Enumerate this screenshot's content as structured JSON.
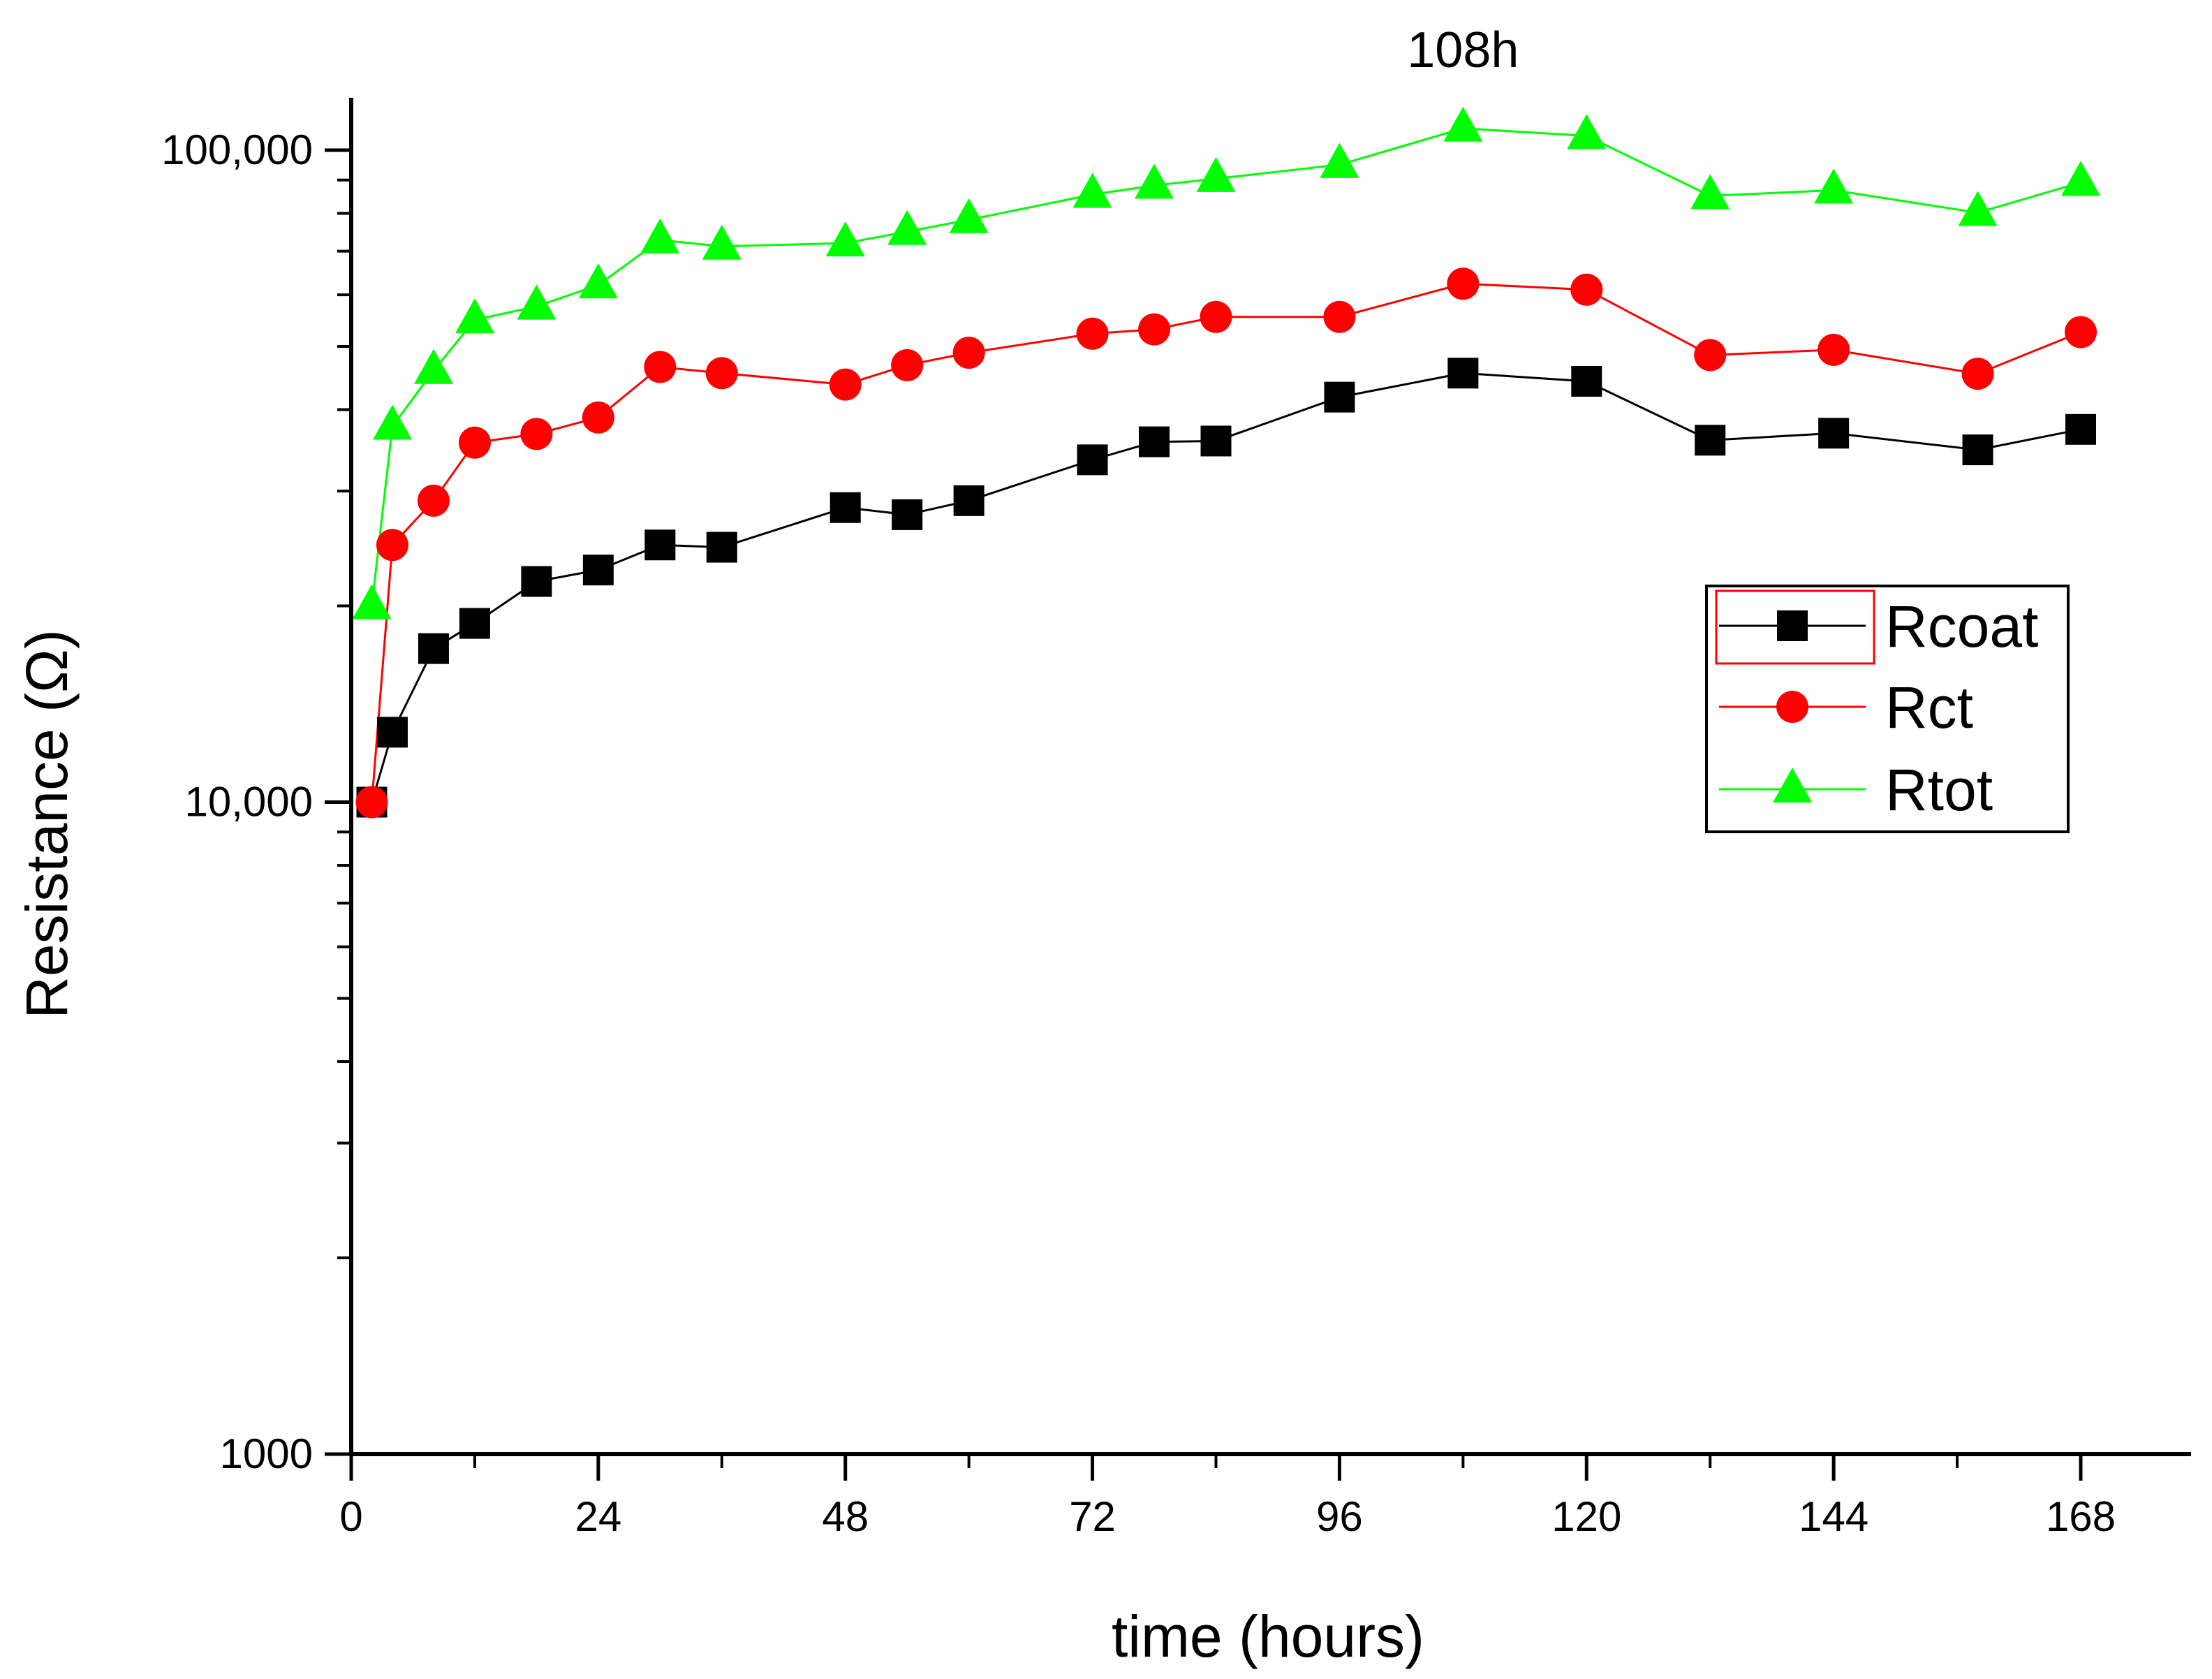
{
  "chart_data": {
    "type": "line",
    "xlabel": "time (hours)",
    "ylabel": "Resistance (Ω)",
    "yscale": "log",
    "xlim": [
      0,
      180
    ],
    "ylim": [
      1000,
      140000
    ],
    "x_ticks": [
      0,
      24,
      48,
      72,
      96,
      120,
      144,
      168
    ],
    "x_tick_labels": [
      "0",
      "24",
      "48",
      "72",
      "96",
      "120",
      "144",
      "168"
    ],
    "y_ticks": [
      1000,
      10000,
      100000
    ],
    "y_tick_labels": [
      "1000",
      "10,000",
      "100,000"
    ],
    "annotation": {
      "text": "108h",
      "x": 108
    },
    "legend_position": "right",
    "series": [
      {
        "name": "Rcoat",
        "color": "#000000",
        "marker": "square",
        "x": [
          2,
          4,
          8,
          12,
          18,
          24,
          30,
          36,
          48,
          54,
          60,
          72,
          78,
          84,
          96,
          108,
          120,
          132,
          144,
          158,
          168
        ],
        "values": [
          10000,
          12800,
          17200,
          18800,
          21800,
          22700,
          24800,
          24600,
          28300,
          27600,
          29000,
          33500,
          35700,
          35800,
          41800,
          45500,
          44200,
          35900,
          36800,
          34700,
          37300
        ]
      },
      {
        "name": "Rct",
        "color": "#ff0000",
        "marker": "circle",
        "x": [
          2,
          4,
          8,
          12,
          18,
          24,
          30,
          36,
          48,
          54,
          60,
          72,
          78,
          84,
          96,
          108,
          120,
          132,
          144,
          158,
          168
        ],
        "values": [
          10000,
          24800,
          29000,
          35600,
          36700,
          38900,
          46500,
          45500,
          43700,
          46800,
          48900,
          52300,
          53100,
          55500,
          55500,
          62400,
          61100,
          48500,
          49400,
          45400,
          52600
        ]
      },
      {
        "name": "Rtot",
        "color": "#00ff00",
        "marker": "triangle",
        "x": [
          2,
          4,
          8,
          12,
          18,
          24,
          30,
          36,
          48,
          54,
          60,
          72,
          78,
          84,
          96,
          108,
          120,
          132,
          144,
          158,
          168
        ],
        "values": [
          20000,
          37700,
          45900,
          54900,
          57600,
          62100,
          72800,
          71200,
          72000,
          75000,
          78200,
          85500,
          88300,
          90400,
          95000,
          108000,
          105200,
          85100,
          86800,
          80200,
          89200
        ]
      }
    ]
  }
}
